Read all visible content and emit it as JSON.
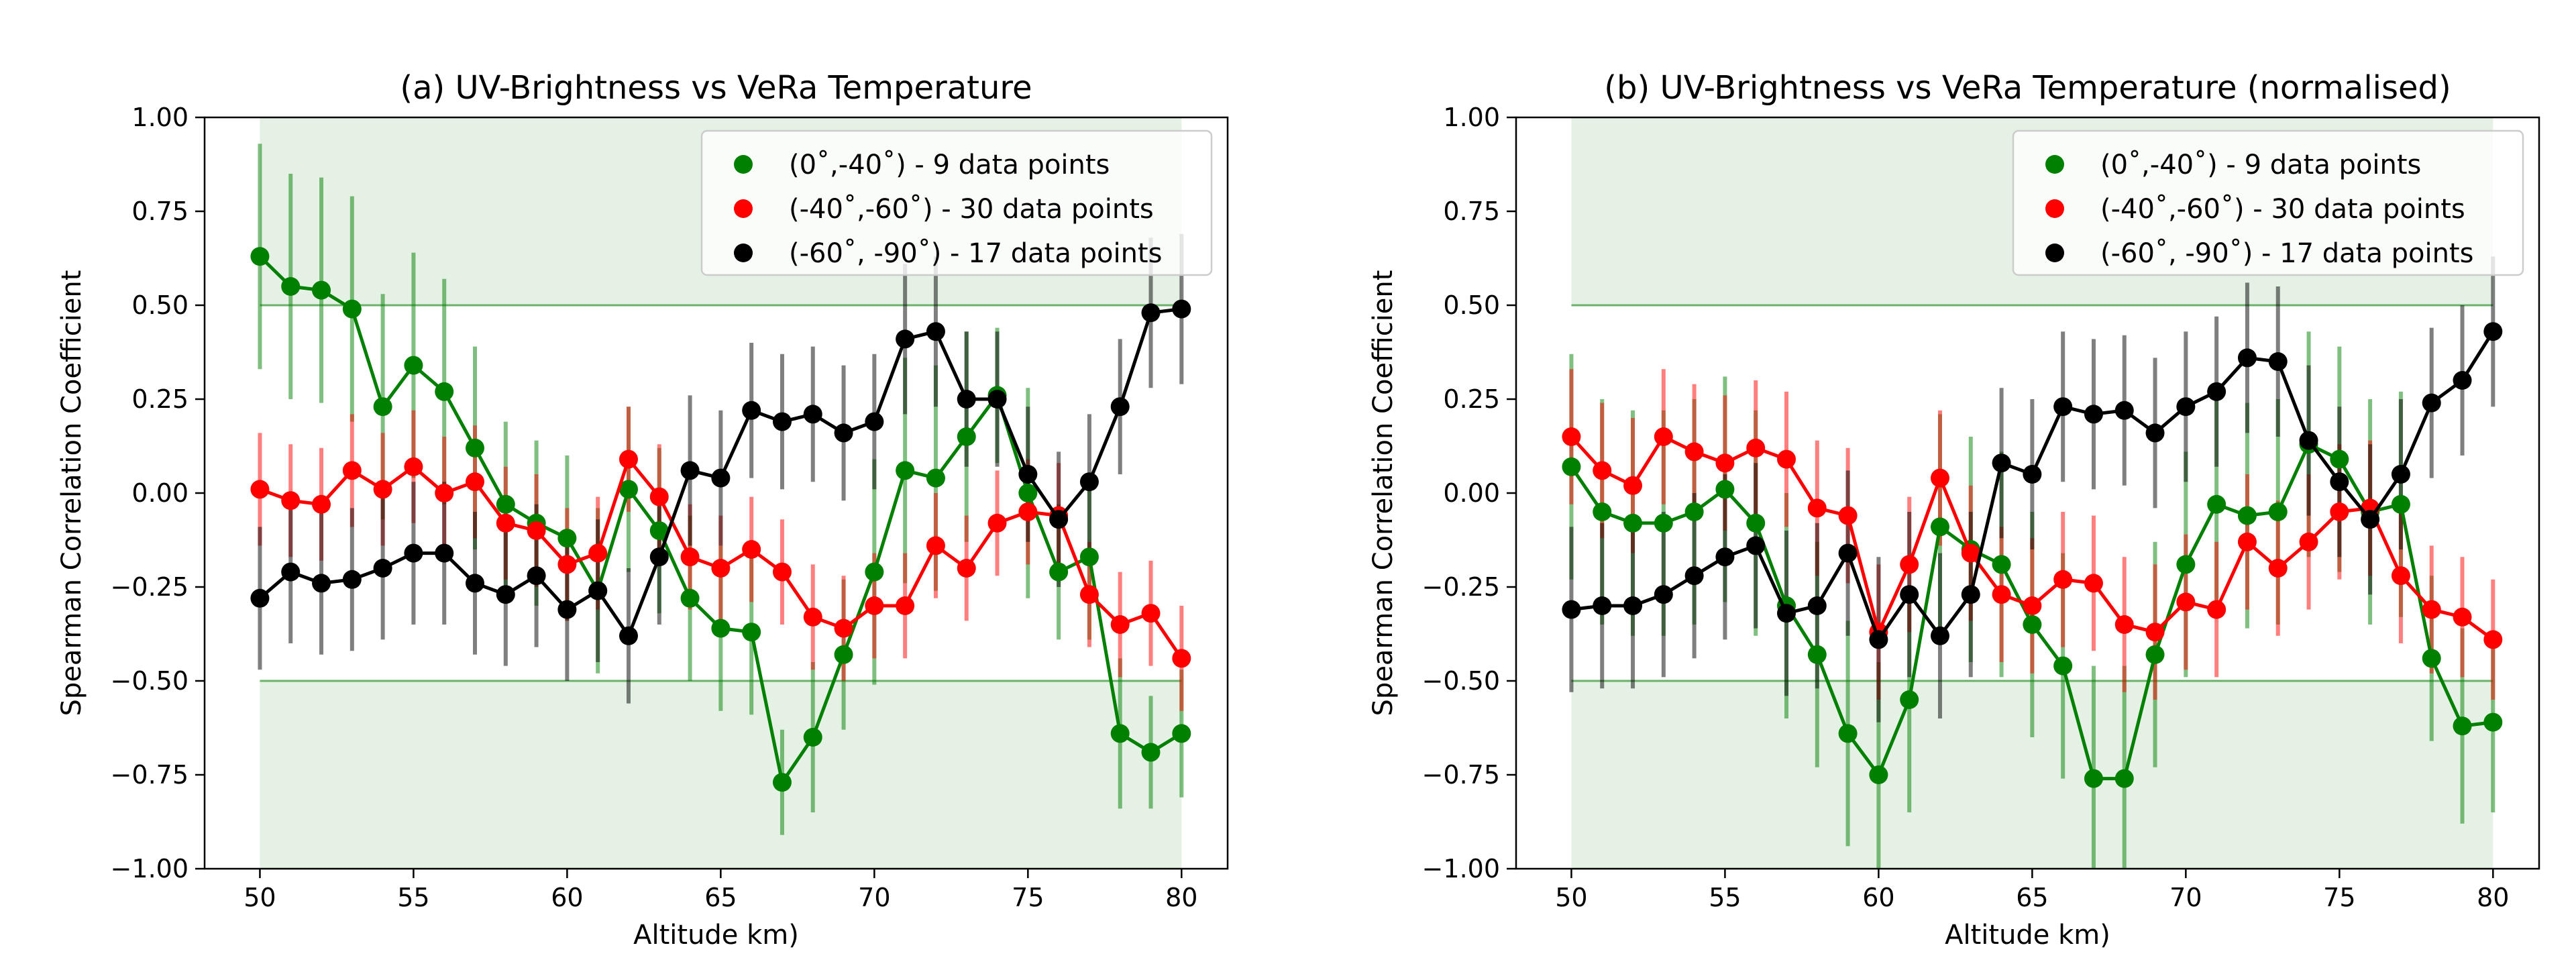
{
  "chart_data": [
    {
      "type": "line",
      "title": "(a) UV-Brightness vs VeRa Temperature",
      "xlabel": "Altitude km)",
      "ylabel": "Spearman Correlation Coefficient",
      "xlim": [
        48.2,
        81.5
      ],
      "ylim": [
        -1.0,
        1.0
      ],
      "xticks": [
        "50",
        "55",
        "60",
        "65",
        "70",
        "75",
        "80"
      ],
      "yticks": [
        "−1.00",
        "−0.75",
        "−0.50",
        "−0.25",
        "0.00",
        "0.25",
        "0.50",
        "0.75",
        "1.00"
      ],
      "xtick_values": [
        50,
        55,
        60,
        65,
        70,
        75,
        80
      ],
      "ytick_values": [
        -1.0,
        -0.75,
        -0.5,
        -0.25,
        0.0,
        0.25,
        0.5,
        0.75,
        1.0
      ],
      "legend_position": "top-right",
      "grid": false,
      "shaded_regions": [
        {
          "x": [
            50,
            80
          ],
          "y": [
            0.5,
            1.0
          ],
          "color": "#e5f1e5"
        },
        {
          "x": [
            50,
            80
          ],
          "y": [
            -1.0,
            -0.5
          ],
          "color": "#e5f1e5"
        }
      ],
      "reference_lines": [
        {
          "y": 0.5,
          "color": "#6ab26a"
        },
        {
          "y": -0.5,
          "color": "#6ab26a"
        }
      ],
      "x": [
        50,
        51,
        52,
        53,
        54,
        55,
        56,
        57,
        58,
        59,
        60,
        61,
        62,
        63,
        64,
        65,
        66,
        67,
        68,
        69,
        70,
        71,
        72,
        73,
        74,
        75,
        76,
        77,
        78,
        79,
        80
      ],
      "series": [
        {
          "name": "(0˚,-40˚) - 9 data points",
          "color": "#008000",
          "values": [
            0.63,
            0.55,
            0.54,
            0.49,
            0.23,
            0.34,
            0.27,
            0.12,
            -0.03,
            -0.08,
            -0.12,
            -0.26,
            0.01,
            -0.1,
            -0.28,
            -0.36,
            -0.37,
            -0.77,
            -0.65,
            -0.43,
            -0.21,
            0.06,
            0.04,
            0.15,
            0.26,
            0.0,
            -0.21,
            -0.17,
            -0.64,
            -0.69,
            -0.64
          ],
          "errors": [
            0.3,
            0.3,
            0.3,
            0.3,
            0.3,
            0.3,
            0.3,
            0.27,
            0.22,
            0.22,
            0.22,
            0.22,
            0.22,
            0.22,
            0.22,
            0.22,
            0.22,
            0.14,
            0.2,
            0.2,
            0.3,
            0.3,
            0.3,
            0.28,
            0.18,
            0.28,
            0.18,
            0.22,
            0.2,
            0.15,
            0.17
          ]
        },
        {
          "name": "(-40˚,-60˚) - 30 data points",
          "color": "#ff0000",
          "values": [
            0.01,
            -0.02,
            -0.03,
            0.06,
            0.01,
            0.07,
            0.0,
            0.03,
            -0.08,
            -0.1,
            -0.19,
            -0.16,
            0.09,
            -0.01,
            -0.17,
            -0.2,
            -0.15,
            -0.21,
            -0.33,
            -0.36,
            -0.3,
            -0.3,
            -0.14,
            -0.2,
            -0.08,
            -0.05,
            -0.06,
            -0.27,
            -0.35,
            -0.32,
            -0.44
          ],
          "errors": [
            0.15,
            0.15,
            0.15,
            0.15,
            0.15,
            0.15,
            0.15,
            0.15,
            0.15,
            0.15,
            0.15,
            0.15,
            0.14,
            0.14,
            0.14,
            0.14,
            0.14,
            0.14,
            0.14,
            0.14,
            0.14,
            0.14,
            0.14,
            0.14,
            0.14,
            0.14,
            0.14,
            0.14,
            0.14,
            0.14,
            0.14
          ]
        },
        {
          "name": "(-60˚, -90˚) - 17 data points",
          "color": "#000000",
          "values": [
            -0.28,
            -0.21,
            -0.24,
            -0.23,
            -0.2,
            -0.16,
            -0.16,
            -0.24,
            -0.27,
            -0.22,
            -0.31,
            -0.26,
            -0.38,
            -0.17,
            0.06,
            0.04,
            0.22,
            0.19,
            0.21,
            0.16,
            0.19,
            0.41,
            0.43,
            0.25,
            0.25,
            0.05,
            -0.07,
            0.03,
            0.23,
            0.48,
            0.49
          ],
          "errors": [
            0.19,
            0.19,
            0.19,
            0.19,
            0.19,
            0.19,
            0.19,
            0.19,
            0.19,
            0.19,
            0.19,
            0.19,
            0.18,
            0.18,
            0.2,
            0.18,
            0.18,
            0.18,
            0.18,
            0.18,
            0.18,
            0.2,
            0.2,
            0.18,
            0.18,
            0.18,
            0.18,
            0.18,
            0.18,
            0.2,
            0.2
          ]
        }
      ]
    },
    {
      "type": "line",
      "title": "(b) UV-Brightness vs VeRa Temperature (normalised)",
      "xlabel": "Altitude km)",
      "ylabel": "Spearman Correlation Coefficient",
      "xlim": [
        48.2,
        81.5
      ],
      "ylim": [
        -1.0,
        1.0
      ],
      "xticks": [
        "50",
        "55",
        "60",
        "65",
        "70",
        "75",
        "80"
      ],
      "yticks": [
        "−1.00",
        "−0.75",
        "−0.50",
        "−0.25",
        "0.00",
        "0.25",
        "0.50",
        "0.75",
        "1.00"
      ],
      "xtick_values": [
        50,
        55,
        60,
        65,
        70,
        75,
        80
      ],
      "ytick_values": [
        -1.0,
        -0.75,
        -0.5,
        -0.25,
        0.0,
        0.25,
        0.5,
        0.75,
        1.0
      ],
      "legend_position": "top-right",
      "grid": false,
      "shaded_regions": [
        {
          "x": [
            50,
            80
          ],
          "y": [
            0.5,
            1.0
          ],
          "color": "#e5f1e5"
        },
        {
          "x": [
            50,
            80
          ],
          "y": [
            -1.0,
            -0.5
          ],
          "color": "#e5f1e5"
        }
      ],
      "reference_lines": [
        {
          "y": 0.5,
          "color": "#6ab26a"
        },
        {
          "y": -0.5,
          "color": "#6ab26a"
        }
      ],
      "x": [
        50,
        51,
        52,
        53,
        54,
        55,
        56,
        57,
        58,
        59,
        60,
        61,
        62,
        63,
        64,
        65,
        66,
        67,
        68,
        69,
        70,
        71,
        72,
        73,
        74,
        75,
        76,
        77,
        78,
        79,
        80
      ],
      "series": [
        {
          "name": "(0˚,-40˚) - 9 data points",
          "color": "#008000",
          "values": [
            0.07,
            -0.05,
            -0.08,
            -0.08,
            -0.05,
            0.01,
            -0.08,
            -0.3,
            -0.43,
            -0.64,
            -0.75,
            -0.55,
            -0.09,
            -0.15,
            -0.19,
            -0.35,
            -0.46,
            -0.76,
            -0.76,
            -0.43,
            -0.19,
            -0.03,
            -0.06,
            -0.05,
            0.13,
            0.09,
            -0.05,
            -0.03,
            -0.44,
            -0.62,
            -0.61
          ],
          "errors": [
            0.3,
            0.3,
            0.3,
            0.3,
            0.3,
            0.3,
            0.3,
            0.3,
            0.3,
            0.3,
            0.3,
            0.3,
            0.3,
            0.3,
            0.3,
            0.3,
            0.3,
            0.3,
            0.3,
            0.3,
            0.3,
            0.3,
            0.3,
            0.3,
            0.3,
            0.3,
            0.3,
            0.3,
            0.22,
            0.26,
            0.24
          ]
        },
        {
          "name": "(-40˚,-60˚) - 30 data points",
          "color": "#ff0000",
          "values": [
            0.15,
            0.06,
            0.02,
            0.15,
            0.11,
            0.08,
            0.12,
            0.09,
            -0.04,
            -0.06,
            -0.37,
            -0.19,
            0.04,
            -0.16,
            -0.27,
            -0.3,
            -0.23,
            -0.24,
            -0.35,
            -0.37,
            -0.29,
            -0.31,
            -0.13,
            -0.2,
            -0.13,
            -0.05,
            -0.04,
            -0.22,
            -0.31,
            -0.33,
            -0.39
          ],
          "errors": [
            0.18,
            0.18,
            0.18,
            0.18,
            0.18,
            0.18,
            0.18,
            0.18,
            0.18,
            0.18,
            0.18,
            0.18,
            0.18,
            0.18,
            0.18,
            0.18,
            0.18,
            0.18,
            0.18,
            0.18,
            0.18,
            0.18,
            0.18,
            0.18,
            0.18,
            0.18,
            0.18,
            0.18,
            0.17,
            0.16,
            0.16
          ]
        },
        {
          "name": "(-60˚, -90˚) - 17 data points",
          "color": "#000000",
          "values": [
            -0.31,
            -0.3,
            -0.3,
            -0.27,
            -0.22,
            -0.17,
            -0.14,
            -0.32,
            -0.3,
            -0.16,
            -0.39,
            -0.27,
            -0.38,
            -0.27,
            0.08,
            0.05,
            0.23,
            0.21,
            0.22,
            0.16,
            0.23,
            0.27,
            0.36,
            0.35,
            0.14,
            0.03,
            -0.07,
            0.05,
            0.24,
            0.3,
            0.43
          ],
          "errors": [
            0.22,
            0.22,
            0.22,
            0.22,
            0.22,
            0.22,
            0.22,
            0.22,
            0.22,
            0.22,
            0.22,
            0.22,
            0.22,
            0.22,
            0.2,
            0.2,
            0.2,
            0.2,
            0.2,
            0.2,
            0.2,
            0.2,
            0.2,
            0.2,
            0.2,
            0.2,
            0.2,
            0.2,
            0.2,
            0.2,
            0.2
          ]
        }
      ]
    }
  ]
}
